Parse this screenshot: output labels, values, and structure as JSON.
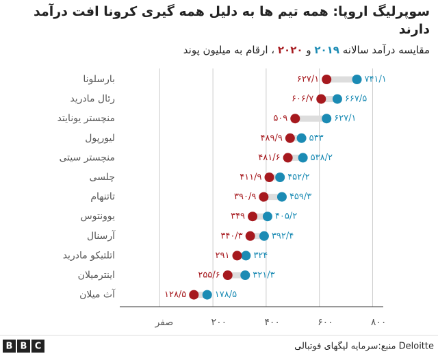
{
  "chart_data": {
    "type": "dumbbell",
    "title": "سوپرلیگ اروپا: همه تیم ها به دلیل همه گیری کرونا افت درآمد دارند",
    "subtitle_parts": [
      "مقایسه درآمد سالانه",
      "و",
      "، ارقام به میلیون پوند"
    ],
    "categories": [
      "بارسلونا",
      "رئال مادرید",
      "منچستر یونایتد",
      "لیورپول",
      "منچستر سیتی",
      "چلسی",
      "تاتنهام",
      "یوونتوس",
      "آرسنال",
      "اتلتیکو مادرید",
      "اینترمیلان",
      "آث میلان"
    ],
    "series": [
      {
        "name": "۲۰۱۹",
        "color": "#1b8bb4",
        "values": [
          741.1,
          667.5,
          627.1,
          533,
          538.2,
          452.2,
          459.3,
          405.2,
          392.4,
          324,
          321.3,
          178.5
        ],
        "value_labels": [
          "۷۴۱/۱",
          "۶۶۷/۵",
          "۶۲۷/۱",
          "۵۳۳",
          "۵۳۸/۲",
          "۴۵۲/۲",
          "۴۵۹/۳",
          "۴۰۵/۲",
          "۳۹۲/۴",
          "۳۲۴",
          "۳۲۱/۳",
          "۱۷۸/۵"
        ]
      },
      {
        "name": "۲۰۲۰",
        "color": "#a6191e",
        "values": [
          627.1,
          606.7,
          509,
          489.9,
          481.6,
          411.9,
          390.9,
          349,
          340.3,
          291,
          255.6,
          128.5
        ],
        "value_labels": [
          "۶۲۷/۱",
          "۶۰۶/۷",
          "۵۰۹",
          "۴۸۹/۹",
          "۴۸۱/۶",
          "۴۱۱/۹",
          "۳۹۰/۹",
          "۳۴۹",
          "۳۴۰/۳",
          "۲۹۱",
          "۲۵۵/۶",
          "۱۲۸/۵"
        ]
      }
    ],
    "xlim": [
      -150,
      840
    ],
    "xticks": [
      {
        "value": 0,
        "label": "صفر"
      },
      {
        "value": 200,
        "label": "۲۰۰"
      },
      {
        "value": 400,
        "label": "۴۰۰"
      },
      {
        "value": 600,
        "label": "۶۰۰"
      },
      {
        "value": 800,
        "label": "۸۰۰"
      }
    ],
    "grid": true
  },
  "footer": {
    "source": "منبع:سرمایه لیگهای فوتبالی Deloitte",
    "logo": [
      "B",
      "B",
      "C"
    ]
  }
}
